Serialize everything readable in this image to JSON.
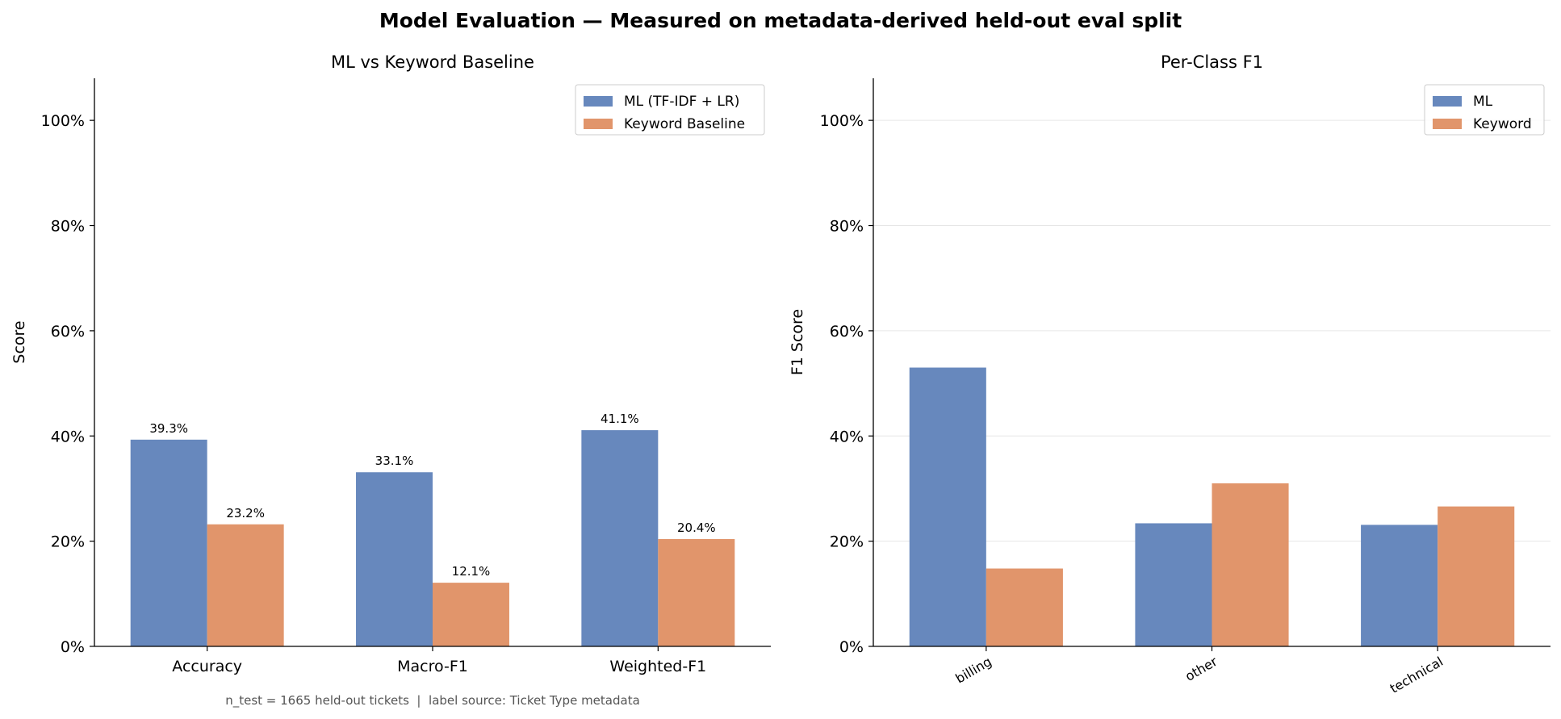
{
  "figure": {
    "title": "Model Evaluation — Measured on metadata-derived held-out eval split"
  },
  "colors": {
    "ml": "#6788bd",
    "keyword": "#e1956b",
    "grid": "#e6e6e6",
    "axis": "#000000",
    "footnote": "#555555"
  },
  "chart_data": [
    {
      "type": "bar",
      "title": "ML vs Keyword Baseline",
      "xlabel": "",
      "ylabel": "Score",
      "categories": [
        "Accuracy",
        "Macro-F1",
        "Weighted-F1"
      ],
      "series": [
        {
          "name": "ML (TF-IDF + LR)",
          "values": [
            0.393,
            0.331,
            0.411
          ],
          "color": "#6788bd"
        },
        {
          "name": "Keyword Baseline",
          "values": [
            0.232,
            0.121,
            0.204
          ],
          "color": "#e1956b"
        }
      ],
      "data_labels": [
        [
          "39.3%",
          "33.1%",
          "41.1%"
        ],
        [
          "23.2%",
          "12.1%",
          "20.4%"
        ]
      ],
      "ylim": [
        0,
        1.08
      ],
      "yticks": [
        0,
        0.2,
        0.4,
        0.6,
        0.8,
        1.0
      ],
      "ytick_labels": [
        "0%",
        "20%",
        "40%",
        "60%",
        "80%",
        "100%"
      ],
      "grid": false,
      "legend": "top-right",
      "footnote": "n_test = 1665 held-out tickets  |  label source: Ticket Type metadata"
    },
    {
      "type": "bar",
      "title": "Per-Class F1",
      "xlabel": "",
      "ylabel": "F1 Score",
      "categories": [
        "billing",
        "other",
        "technical"
      ],
      "series": [
        {
          "name": "ML",
          "values": [
            0.53,
            0.234,
            0.231
          ],
          "color": "#6788bd"
        },
        {
          "name": "Keyword",
          "values": [
            0.148,
            0.31,
            0.266
          ],
          "color": "#e1956b"
        }
      ],
      "ylim": [
        0,
        1.08
      ],
      "yticks": [
        0,
        0.2,
        0.4,
        0.6,
        0.8,
        1.0
      ],
      "ytick_labels": [
        "0%",
        "20%",
        "40%",
        "60%",
        "80%",
        "100%"
      ],
      "grid": true,
      "legend": "top-right",
      "xtick_rotation": -30
    }
  ]
}
